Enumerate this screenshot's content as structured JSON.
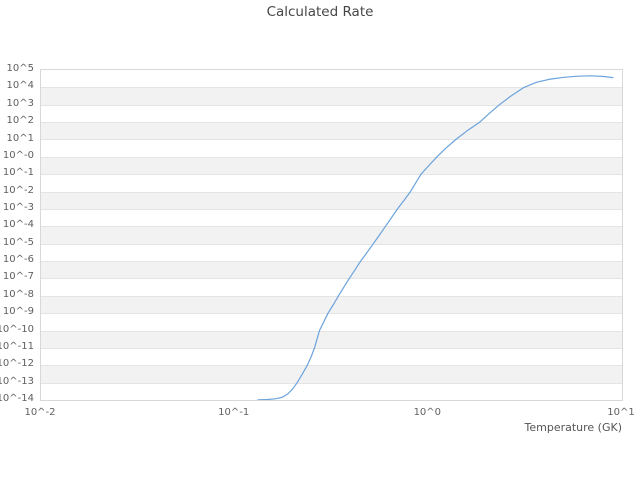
{
  "chart": {
    "title": "Calculated Rate",
    "xlabel": "Temperature (GK)"
  },
  "style": {
    "line_color": "#6ba3dc",
    "band_color": "#f2f2f3",
    "grid_color": "#e4e4e4",
    "border_color": "#d8d8d8",
    "tick_text_color": "#5f5f5f",
    "title_color": "#474747",
    "background_color": "#ffffff"
  },
  "chart_data": {
    "type": "line",
    "title": "Calculated Rate",
    "xlabel": "Temperature (GK)",
    "ylabel": "",
    "x_scale": "log10",
    "y_scale": "log10",
    "xlim_log10": [
      -2,
      1
    ],
    "ylim_log10": [
      -14,
      5
    ],
    "x_ticks": [
      {
        "log10": -2,
        "label": "10^-2"
      },
      {
        "log10": -1,
        "label": "10^-1"
      },
      {
        "log10": 0,
        "label": "10^0"
      },
      {
        "log10": 1,
        "label": "10^1"
      }
    ],
    "y_ticks": [
      {
        "log10": 5,
        "label": "10^5"
      },
      {
        "log10": 4,
        "label": "10^4"
      },
      {
        "log10": 3,
        "label": "10^3"
      },
      {
        "log10": 2,
        "label": "10^2"
      },
      {
        "log10": 1,
        "label": "10^1"
      },
      {
        "log10": 0,
        "label": "10^-0"
      },
      {
        "log10": -1,
        "label": "10^-1"
      },
      {
        "log10": -2,
        "label": "10^-2"
      },
      {
        "log10": -3,
        "label": "10^-3"
      },
      {
        "log10": -4,
        "label": "10^-4"
      },
      {
        "log10": -5,
        "label": "10^-5"
      },
      {
        "log10": -6,
        "label": "10^-6"
      },
      {
        "log10": -7,
        "label": "10^-7"
      },
      {
        "log10": -8,
        "label": "10^-8"
      },
      {
        "log10": -9,
        "label": "10^-9"
      },
      {
        "log10": -10,
        "label": "10^-10"
      },
      {
        "log10": -11,
        "label": "10^-11"
      },
      {
        "log10": -12,
        "label": "10^-12"
      },
      {
        "log10": -13,
        "label": "10^-13"
      },
      {
        "log10": -14,
        "label": "10^-14"
      }
    ],
    "grid": "horizontal-alternating-bands",
    "legend": "none",
    "series": [
      {
        "name": "calculated-rate",
        "color": "#6ba3dc",
        "points_log10_T_vs_log10_rate": [
          [
            -0.88,
            -13.99
          ],
          [
            -0.83,
            -13.97
          ],
          [
            -0.79,
            -13.93
          ],
          [
            -0.755,
            -13.85
          ],
          [
            -0.725,
            -13.65
          ],
          [
            -0.7,
            -13.35
          ],
          [
            -0.677,
            -13.0
          ],
          [
            -0.65,
            -12.5
          ],
          [
            -0.625,
            -12.0
          ],
          [
            -0.605,
            -11.5
          ],
          [
            -0.588,
            -11.0
          ],
          [
            -0.575,
            -10.5
          ],
          [
            -0.562,
            -10.0
          ],
          [
            -0.54,
            -9.5
          ],
          [
            -0.518,
            -9.0
          ],
          [
            -0.49,
            -8.5
          ],
          [
            -0.464,
            -8.0
          ],
          [
            -0.436,
            -7.5
          ],
          [
            -0.408,
            -7.0
          ],
          [
            -0.378,
            -6.5
          ],
          [
            -0.349,
            -6.0
          ],
          [
            -0.316,
            -5.5
          ],
          [
            -0.284,
            -5.0
          ],
          [
            -0.252,
            -4.5
          ],
          [
            -0.221,
            -4.0
          ],
          [
            -0.19,
            -3.5
          ],
          [
            -0.159,
            -3.0
          ],
          [
            -0.125,
            -2.5
          ],
          [
            -0.092,
            -2.0
          ],
          [
            -0.065,
            -1.5
          ],
          [
            -0.038,
            -1.0
          ],
          [
            0.003,
            -0.5
          ],
          [
            0.045,
            0.0
          ],
          [
            0.09,
            0.5
          ],
          [
            0.142,
            1.0
          ],
          [
            0.2,
            1.5
          ],
          [
            0.266,
            2.0
          ],
          [
            0.315,
            2.5
          ],
          [
            0.367,
            3.0
          ],
          [
            0.426,
            3.5
          ],
          [
            0.494,
            4.0
          ],
          [
            0.56,
            4.3
          ],
          [
            0.622,
            4.46
          ],
          [
            0.7,
            4.58
          ],
          [
            0.76,
            4.64
          ],
          [
            0.84,
            4.665
          ],
          [
            0.9,
            4.63
          ],
          [
            0.953,
            4.56
          ]
        ]
      }
    ]
  }
}
